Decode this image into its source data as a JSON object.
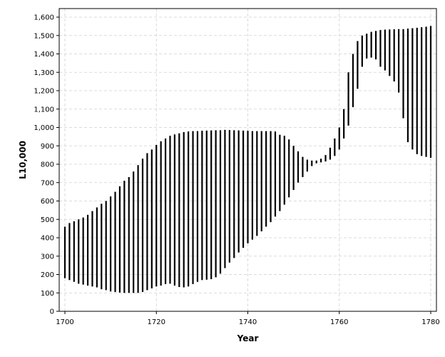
{
  "chart_data": {
    "type": "bar",
    "subtype": "high-low range (floating vertical lines)",
    "title": "",
    "xlabel": "Year",
    "ylabel": "L10,000",
    "xlim": [
      1700,
      1780
    ],
    "ylim": [
      0,
      1600
    ],
    "x_ticks": [
      1700,
      1720,
      1740,
      1760,
      1780
    ],
    "y_ticks": [
      0,
      100,
      200,
      300,
      400,
      500,
      600,
      700,
      800,
      900,
      1000,
      1100,
      1200,
      1300,
      1400,
      1500,
      1600
    ],
    "tick_labels_x": [
      "1700",
      "1720",
      "1740",
      "1760",
      "1780"
    ],
    "tick_labels_y": [
      "0",
      "100",
      "200",
      "300",
      "400",
      "500",
      "600",
      "700",
      "800",
      "900",
      "1,000",
      "1,100",
      "1,200",
      "1,300",
      "1,400",
      "1,500",
      "1,600"
    ],
    "grid": true,
    "legend": "none",
    "colors": {
      "line": "#000000",
      "grid": "#d0d0d0",
      "background": "#ffffff"
    },
    "x": [
      1700,
      1701,
      1702,
      1703,
      1704,
      1705,
      1706,
      1707,
      1708,
      1709,
      1710,
      1711,
      1712,
      1713,
      1714,
      1715,
      1716,
      1717,
      1718,
      1719,
      1720,
      1721,
      1722,
      1723,
      1724,
      1725,
      1726,
      1727,
      1728,
      1729,
      1730,
      1731,
      1732,
      1733,
      1734,
      1735,
      1736,
      1737,
      1738,
      1739,
      1740,
      1741,
      1742,
      1743,
      1744,
      1745,
      1746,
      1747,
      1748,
      1749,
      1750,
      1751,
      1752,
      1753,
      1754,
      1755,
      1756,
      1757,
      1758,
      1759,
      1760,
      1761,
      1762,
      1763,
      1764,
      1765,
      1766,
      1767,
      1768,
      1769,
      1770,
      1771,
      1772,
      1773,
      1774,
      1775,
      1776,
      1777,
      1778,
      1779,
      1780
    ],
    "low": [
      180,
      170,
      160,
      150,
      145,
      140,
      135,
      130,
      120,
      115,
      108,
      105,
      102,
      100,
      100,
      100,
      100,
      105,
      115,
      125,
      135,
      140,
      148,
      150,
      140,
      132,
      130,
      135,
      148,
      160,
      170,
      172,
      175,
      185,
      205,
      235,
      265,
      290,
      320,
      345,
      370,
      390,
      410,
      435,
      460,
      485,
      515,
      545,
      580,
      620,
      660,
      700,
      730,
      760,
      790,
      805,
      810,
      815,
      825,
      845,
      880,
      940,
      1010,
      1110,
      1210,
      1330,
      1375,
      1380,
      1370,
      1330,
      1310,
      1280,
      1250,
      1190,
      1050,
      920,
      880,
      855,
      845,
      840,
      835
    ],
    "high": [
      460,
      480,
      490,
      500,
      510,
      525,
      545,
      565,
      585,
      600,
      625,
      650,
      680,
      710,
      730,
      760,
      795,
      830,
      860,
      880,
      905,
      925,
      940,
      955,
      962,
      968,
      975,
      978,
      980,
      980,
      982,
      983,
      984,
      985,
      985,
      987,
      986,
      985,
      984,
      983,
      982,
      980,
      980,
      980,
      980,
      980,
      978,
      960,
      955,
      935,
      900,
      870,
      840,
      825,
      820,
      820,
      830,
      850,
      890,
      940,
      1000,
      1100,
      1300,
      1400,
      1470,
      1500,
      1510,
      1520,
      1525,
      1530,
      1532,
      1533,
      1534,
      1535,
      1535,
      1538,
      1540,
      1542,
      1545,
      1548,
      1552
    ]
  }
}
